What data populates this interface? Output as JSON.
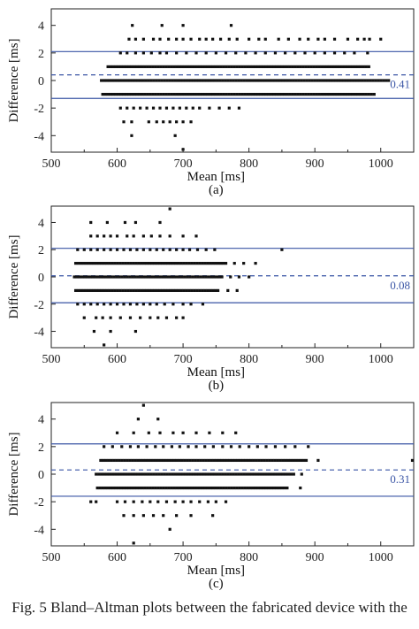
{
  "caption": "Fig. 5  Bland–Altman plots between the fabricated device with the",
  "colors": {
    "limit_line": "#3a55a5",
    "mean_line": "#3a55a5",
    "points": "#111111",
    "axis": "#222222"
  },
  "chart_data": [
    {
      "type": "scatter",
      "panel_label": "(a)",
      "xlabel": "Mean [ms]",
      "ylabel": "Difference [ms]",
      "xlim": [
        500,
        1050
      ],
      "ylim": [
        -5.2,
        5.2
      ],
      "xticks": [
        500,
        600,
        700,
        800,
        900,
        1000
      ],
      "yticks": [
        -4,
        -2,
        0,
        2,
        4
      ],
      "mean_difference": 0.41,
      "mean_label": "0.41",
      "upper_limit": 2.1,
      "lower_limit": -1.3,
      "rows": [
        {
          "y": 4,
          "x": [
            623,
            668,
            700,
            773
          ]
        },
        {
          "y": 3,
          "x": [
            618,
            628,
            640,
            655,
            665,
            678,
            690,
            700,
            712,
            725,
            735,
            745,
            757,
            770,
            782,
            800,
            815,
            825,
            845,
            860,
            877,
            890,
            905,
            915,
            930,
            950,
            965,
            975,
            983,
            1000
          ]
        },
        {
          "y": 2,
          "x": [
            605,
            615,
            628,
            640,
            652,
            665,
            675,
            690,
            705,
            720,
            735,
            750,
            765,
            780,
            795,
            810,
            825,
            840,
            855,
            870,
            885,
            900,
            915,
            930,
            945,
            960,
            980
          ]
        },
        {
          "y": 1,
          "x_range": [
            586,
            985
          ],
          "step": 4
        },
        {
          "y": 0,
          "x_range": [
            576,
            1012
          ],
          "step": 4
        },
        {
          "y": -1,
          "x_range": [
            578,
            990
          ],
          "step": 4
        },
        {
          "y": -2,
          "x": [
            605,
            615,
            625,
            635,
            645,
            655,
            665,
            675,
            685,
            695,
            705,
            715,
            725,
            740,
            755,
            770,
            785
          ]
        },
        {
          "y": -3,
          "x": [
            610,
            622,
            648,
            660,
            670,
            680,
            690,
            700,
            712
          ]
        },
        {
          "y": -4,
          "x": [
            622,
            688
          ]
        },
        {
          "y": -5,
          "x": [
            700
          ]
        }
      ]
    },
    {
      "type": "scatter",
      "panel_label": "(b)",
      "xlabel": "Mean [ms]",
      "ylabel": "Difference [ms]",
      "xlim": [
        500,
        1050
      ],
      "ylim": [
        -5.2,
        5.2
      ],
      "xticks": [
        500,
        600,
        700,
        800,
        900,
        1000
      ],
      "yticks": [
        -4,
        -2,
        0,
        2,
        4
      ],
      "mean_difference": 0.08,
      "mean_label": "0.08",
      "upper_limit": 2.1,
      "lower_limit": -1.9,
      "rows": [
        {
          "y": 5,
          "x": [
            680
          ]
        },
        {
          "y": 4,
          "x": [
            560,
            585,
            612,
            628,
            665
          ]
        },
        {
          "y": 3,
          "x": [
            560,
            570,
            580,
            590,
            600,
            615,
            625,
            640,
            652,
            665,
            680,
            700,
            720
          ]
        },
        {
          "y": 2,
          "x": [
            540,
            550,
            560,
            570,
            580,
            590,
            600,
            610,
            620,
            630,
            640,
            650,
            660,
            670,
            680,
            690,
            700,
            710,
            722,
            735,
            748,
            850
          ]
        },
        {
          "y": 1,
          "x_range": [
            537,
            768
          ],
          "step": 4,
          "extra": [
            778,
            792,
            810
          ]
        },
        {
          "y": 0,
          "x_range": [
            535,
            760
          ],
          "step": 4,
          "extra": [
            772,
            785,
            800
          ]
        },
        {
          "y": -1,
          "x_range": [
            537,
            756
          ],
          "step": 4,
          "extra": [
            768,
            782
          ]
        },
        {
          "y": -2,
          "x": [
            540,
            550,
            560,
            570,
            580,
            590,
            600,
            610,
            620,
            630,
            640,
            650,
            660,
            672,
            685,
            700,
            712,
            730
          ]
        },
        {
          "y": -3,
          "x": [
            550,
            568,
            578,
            590,
            605,
            620,
            635,
            650,
            662,
            675,
            690,
            700
          ]
        },
        {
          "y": -4,
          "x": [
            565,
            590,
            628
          ]
        },
        {
          "y": -5,
          "x": [
            580
          ]
        }
      ]
    },
    {
      "type": "scatter",
      "panel_label": "(c)",
      "xlabel": "Mean [ms]",
      "ylabel": "Difference [ms]",
      "xlim": [
        500,
        1050
      ],
      "ylim": [
        -5.2,
        5.2
      ],
      "xticks": [
        500,
        600,
        700,
        800,
        900,
        1000
      ],
      "yticks": [
        -4,
        -2,
        0,
        2,
        4
      ],
      "mean_difference": 0.31,
      "mean_label": "0.31",
      "upper_limit": 2.2,
      "lower_limit": -1.6,
      "rows": [
        {
          "y": 5,
          "x": [
            640
          ]
        },
        {
          "y": 4,
          "x": [
            632,
            662
          ]
        },
        {
          "y": 3,
          "x": [
            600,
            625,
            648,
            665,
            685,
            700,
            720,
            740,
            760,
            780
          ]
        },
        {
          "y": 2,
          "x": [
            580,
            593,
            607,
            620,
            632,
            645,
            658,
            670,
            683,
            695,
            708,
            720,
            733,
            746,
            760,
            773,
            786,
            800,
            813,
            826,
            840,
            855,
            870,
            890
          ]
        },
        {
          "y": 1,
          "x_range": [
            575,
            890
          ],
          "step": 4,
          "extra": [
            905,
            1048
          ]
        },
        {
          "y": 0,
          "x_range": [
            568,
            870
          ],
          "step": 4,
          "extra": [
            880
          ]
        },
        {
          "y": -1,
          "x_range": [
            570,
            860
          ],
          "step": 4,
          "extra": [
            878
          ]
        },
        {
          "y": -2,
          "x": [
            560,
            568,
            600,
            612,
            625,
            638,
            650,
            662,
            675,
            688,
            700,
            712,
            725,
            738,
            750,
            765
          ]
        },
        {
          "y": -3,
          "x": [
            610,
            625,
            640,
            655,
            670,
            690,
            712,
            745
          ]
        },
        {
          "y": -4,
          "x": [
            680
          ]
        },
        {
          "y": -5,
          "x": [
            625
          ]
        }
      ]
    }
  ]
}
